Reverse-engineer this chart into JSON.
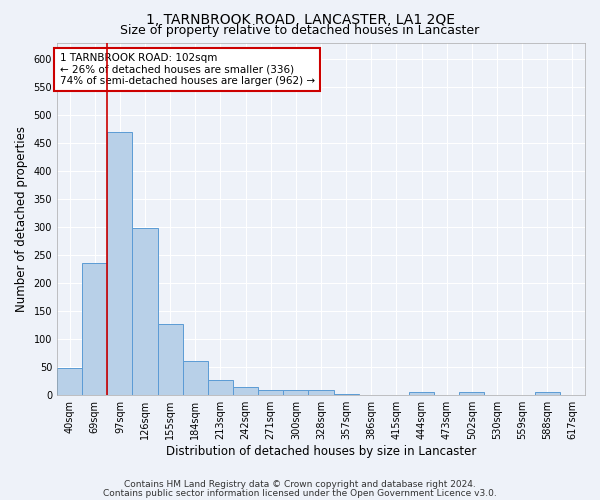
{
  "title": "1, TARNBROOK ROAD, LANCASTER, LA1 2QE",
  "subtitle": "Size of property relative to detached houses in Lancaster",
  "xlabel": "Distribution of detached houses by size in Lancaster",
  "ylabel": "Number of detached properties",
  "categories": [
    "40sqm",
    "69sqm",
    "97sqm",
    "126sqm",
    "155sqm",
    "184sqm",
    "213sqm",
    "242sqm",
    "271sqm",
    "300sqm",
    "328sqm",
    "357sqm",
    "386sqm",
    "415sqm",
    "444sqm",
    "473sqm",
    "502sqm",
    "530sqm",
    "559sqm",
    "588sqm",
    "617sqm"
  ],
  "values": [
    48,
    235,
    470,
    298,
    127,
    61,
    27,
    14,
    8,
    9,
    8,
    2,
    0,
    0,
    5,
    0,
    5,
    0,
    0,
    4,
    0
  ],
  "bar_color": "#b8d0e8",
  "bar_edge_color": "#5b9bd5",
  "vline_x": 1.5,
  "vline_color": "#cc0000",
  "annotation_line1": "1 TARNBROOK ROAD: 102sqm",
  "annotation_line2": "← 26% of detached houses are smaller (336)",
  "annotation_line3": "74% of semi-detached houses are larger (962) →",
  "annotation_box_color": "#ffffff",
  "annotation_box_edge": "#cc0000",
  "ylim": [
    0,
    630
  ],
  "yticks": [
    0,
    50,
    100,
    150,
    200,
    250,
    300,
    350,
    400,
    450,
    500,
    550,
    600
  ],
  "footer1": "Contains HM Land Registry data © Crown copyright and database right 2024.",
  "footer2": "Contains public sector information licensed under the Open Government Licence v3.0.",
  "bg_color": "#eef2f9",
  "plot_bg_color": "#eef2f9",
  "grid_color": "#ffffff",
  "title_fontsize": 10,
  "subtitle_fontsize": 9,
  "axis_label_fontsize": 8.5,
  "tick_fontsize": 7,
  "footer_fontsize": 6.5,
  "annotation_fontsize": 7.5
}
